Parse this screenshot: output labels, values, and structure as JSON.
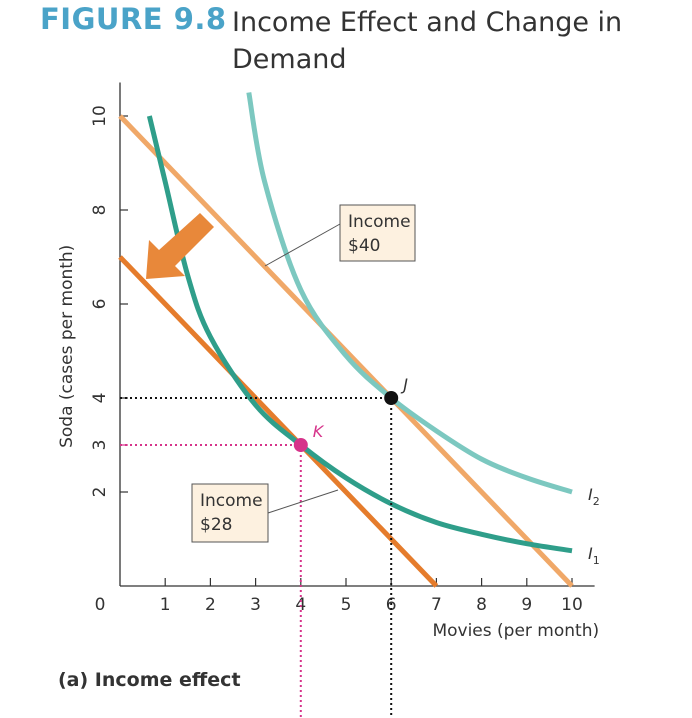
{
  "figure": {
    "label": "FIGURE 9.8",
    "title": "Income Effect and Change in Demand"
  },
  "chart_data": {
    "type": "line",
    "title": "Income Effect and Change in Demand",
    "xlabel": "Movies (per month)",
    "ylabel": "Soda (cases per month)",
    "xlim": [
      0,
      10.5
    ],
    "ylim": [
      0,
      10.5
    ],
    "x_ticks": [
      1,
      2,
      3,
      4,
      5,
      6,
      7,
      8,
      9,
      10
    ],
    "y_ticks": [
      2,
      4,
      6,
      8,
      10
    ],
    "highlight_x_tick": 4,
    "highlight_y_tick": 3,
    "origin_label": "0",
    "grid": false,
    "series": [
      {
        "name": "Income $40",
        "kind": "budget line",
        "color": "#f0a868",
        "x": [
          0,
          10
        ],
        "y": [
          10,
          0
        ]
      },
      {
        "name": "Income $28",
        "kind": "budget line",
        "color": "#e57c2c",
        "x": [
          0,
          7
        ],
        "y": [
          7,
          0
        ]
      },
      {
        "name": "I1",
        "kind": "indifference curve",
        "color": "#2f9e8a",
        "x": [
          0.65,
          1,
          1.5,
          2,
          3,
          4,
          5,
          6,
          7,
          8,
          9,
          10
        ],
        "y": [
          10.0,
          8.6,
          6.6,
          5.3,
          3.85,
          3.0,
          2.3,
          1.75,
          1.35,
          1.1,
          0.9,
          0.75
        ]
      },
      {
        "name": "I2",
        "kind": "indifference curve",
        "color": "#7cc8c0",
        "x": [
          2.85,
          3.2,
          4,
          5,
          6,
          7,
          8,
          9,
          10
        ],
        "y": [
          10.5,
          8.6,
          6.3,
          4.9,
          4.0,
          3.3,
          2.7,
          2.3,
          2.0
        ]
      }
    ],
    "points": [
      {
        "label": "J",
        "x": 6,
        "y": 4,
        "color": "#111111"
      },
      {
        "label": "K",
        "x": 4,
        "y": 3,
        "color": "#d6338a"
      }
    ],
    "annotations": [
      {
        "text": [
          "Income",
          "$40"
        ],
        "points_to": "Income $40"
      },
      {
        "text": [
          "Income",
          "$28"
        ],
        "points_to": "Income $28"
      }
    ],
    "curve_labels": {
      "I1": "1",
      "I2": "2"
    },
    "curve_label_letter": "I",
    "panel_label": "(a) Income effect"
  }
}
